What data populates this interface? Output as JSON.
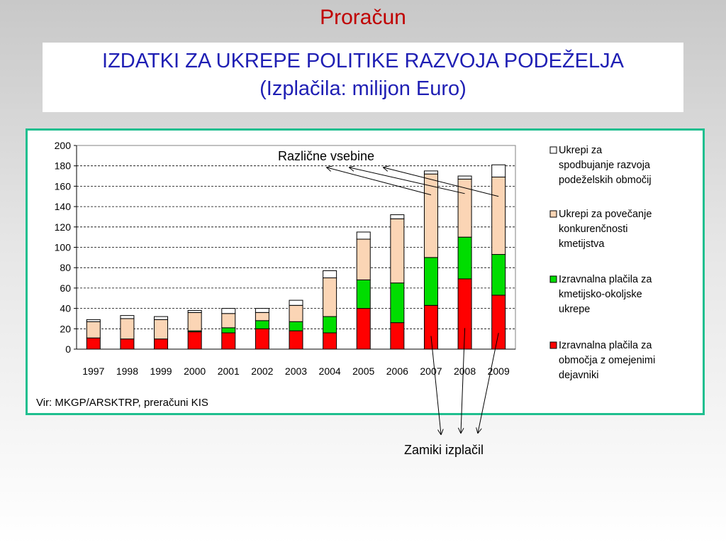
{
  "slide_title": "Proračun",
  "title_line1": "IZDATKI ZA UKREPE POLITIKE RAZVOJA PODEŽELJA",
  "title_line2": "(Izplačila: milijon Euro)",
  "source": "Vir: MKGP/ARSKTRP, preračuni KIS",
  "annotation_top": "Različne vsebine",
  "annotation_bottom": "Zamiki izplačil",
  "colors": {
    "red": "#ff0000",
    "green": "#00dd00",
    "peach": "#fbd5b5",
    "white": "#ffffff",
    "title": "#1f1fb4",
    "slide_title": "#c00000",
    "frame": "#1fbf8f"
  },
  "chart_data": {
    "type": "bar",
    "stacked": true,
    "categories": [
      "1997",
      "1998",
      "1999",
      "2000",
      "2001",
      "2002",
      "2003",
      "2004",
      "2005",
      "2006",
      "2007",
      "2008",
      "2009"
    ],
    "series": [
      {
        "name": "Izravnalna plačila za območja z omejenimi dejavniki",
        "legend_lines": [
          "Izravnalna plačila za",
          "območja z omejenimi",
          "dejavniki"
        ],
        "color": "#ff0000",
        "values": [
          11,
          10,
          10,
          17,
          16,
          20,
          18,
          16,
          40,
          26,
          43,
          69,
          53
        ]
      },
      {
        "name": "Izravnalna plačila za kmetijsko-okoljske ukrepe",
        "legend_lines": [
          "Izravnalna plačila za",
          "kmetijsko-okoljske",
          "ukrepe"
        ],
        "color": "#00dd00",
        "values": [
          0,
          0,
          0,
          1,
          5,
          8,
          9,
          16,
          28,
          39,
          47,
          41,
          40
        ]
      },
      {
        "name": "Ukrepi za povečanje konkurenčnosti kmetijstva",
        "legend_lines": [
          "Ukrepi za povečanje",
          "konkurenčnosti",
          "kmetijstva"
        ],
        "color": "#fbd5b5",
        "values": [
          16,
          20,
          19,
          18,
          14,
          8,
          16,
          38,
          40,
          63,
          82,
          57,
          76
        ]
      },
      {
        "name": "Ukrepi za spodbujanje razvoja podeželskih območij",
        "legend_lines": [
          "Ukrepi za",
          "spodbujanje razvoja",
          "podeželskih območij"
        ],
        "color": "#ffffff",
        "values": [
          2,
          3,
          3,
          2,
          5,
          4,
          5,
          7,
          7,
          4,
          3,
          3,
          12
        ]
      }
    ],
    "ylim": [
      0,
      200
    ],
    "yticks": [
      0,
      20,
      40,
      60,
      80,
      100,
      120,
      140,
      160,
      180,
      200
    ],
    "grid": true,
    "legend_position": "right"
  }
}
